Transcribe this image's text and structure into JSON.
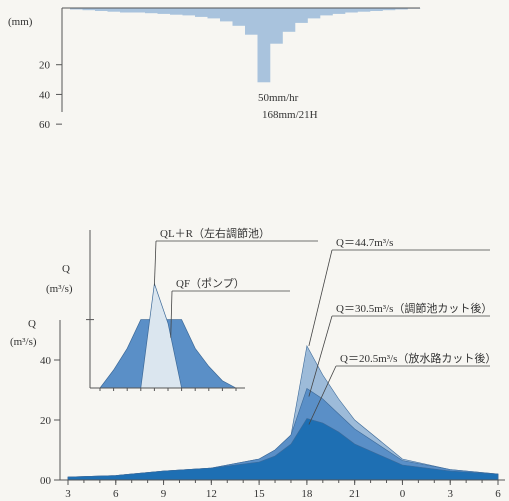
{
  "chart_data": [
    {
      "type": "bar",
      "ylabel": "(mm)",
      "yticks": [
        20,
        40,
        60
      ],
      "ylim": [
        0,
        70
      ],
      "hours": [
        3,
        4,
        5,
        6,
        7,
        8,
        9,
        10,
        11,
        12,
        13,
        14,
        15,
        16,
        17,
        18,
        19,
        20,
        21,
        22,
        23,
        24,
        25,
        26,
        27,
        28,
        29,
        30
      ],
      "values": [
        1,
        1.5,
        2,
        2.5,
        3,
        3,
        3.5,
        4,
        4.5,
        5,
        6,
        7,
        9,
        12,
        18,
        50,
        24,
        16,
        10,
        7,
        5,
        4,
        3,
        2.5,
        2,
        1.5,
        1,
        0.5
      ],
      "annotation_lines": [
        "50mm/hr",
        "168mm/21H"
      ],
      "color": "#a9c3dd"
    },
    {
      "type": "area",
      "ylabel_lines": [
        "Q",
        "(m³/s)"
      ],
      "yticks": [
        0,
        20,
        40
      ],
      "ylim": [
        0,
        50
      ],
      "xtick_labels": [
        "3",
        "6",
        "9",
        "12",
        "15",
        "18",
        "21",
        "0",
        "3",
        "6"
      ],
      "xtick_hours": [
        3,
        6,
        9,
        12,
        15,
        18,
        21,
        24,
        27,
        30
      ],
      "series": [
        {
          "color": "#9dbbd9",
          "x": [
            3,
            6,
            9,
            12,
            15,
            16,
            17,
            18,
            19,
            20,
            21,
            24,
            27,
            30
          ],
          "y": [
            1,
            1.5,
            3,
            4,
            7,
            10,
            15,
            44.7,
            35,
            27,
            20,
            7,
            3.5,
            2
          ]
        },
        {
          "color": "#5a8fc7",
          "x": [
            3,
            6,
            9,
            12,
            15,
            16,
            17,
            18,
            19,
            20,
            21,
            24,
            27,
            30
          ],
          "y": [
            1,
            1.5,
            3,
            4,
            7,
            10,
            15,
            30.5,
            27,
            22,
            17,
            6.5,
            3.5,
            2
          ]
        },
        {
          "color": "#1e6fb3",
          "x": [
            3,
            6,
            9,
            12,
            15,
            16,
            17,
            18,
            19,
            20,
            21,
            24,
            27,
            30
          ],
          "y": [
            1,
            1.5,
            3,
            4,
            6,
            8,
            12,
            20.5,
            19,
            16,
            12,
            5,
            3,
            2
          ]
        }
      ],
      "annotations": [
        {
          "text": "Q＝44.7m³/s",
          "value": 44.7,
          "hour": 18
        },
        {
          "text": "Q＝30.5m³/s（調節池カット後）",
          "value": 30.5,
          "hour": 18
        },
        {
          "text": "Q＝20.5m³/s（放水路カット後）",
          "value": 20.5,
          "hour": 18
        }
      ]
    },
    {
      "type": "area",
      "ylabel_lines": [
        "Q",
        "(m³/s)"
      ],
      "series": [
        {
          "color": "#5a8fc7",
          "x": [
            0,
            1,
            2,
            3,
            4,
            5,
            6,
            7,
            8,
            9,
            10
          ],
          "y": [
            0,
            0.25,
            0.55,
            0.95,
            0.95,
            0.95,
            0.95,
            0.55,
            0.3,
            0.1,
            0
          ]
        },
        {
          "color": "#dbe6ef",
          "x": [
            3,
            4,
            5,
            6
          ],
          "y": [
            0,
            1.45,
            0.9,
            0
          ]
        }
      ],
      "annotations": [
        {
          "text": "QL＋R（左右調節池）"
        },
        {
          "text": "QF（ポンプ）"
        }
      ]
    }
  ]
}
